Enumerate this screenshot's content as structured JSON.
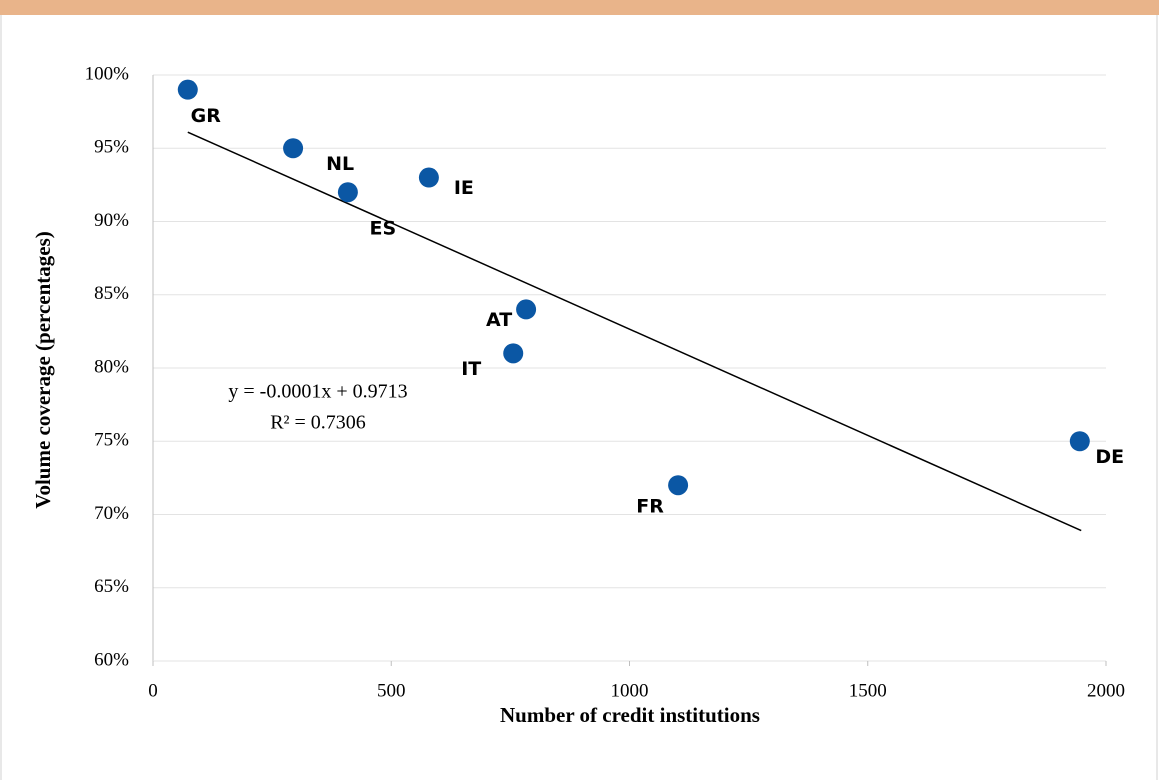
{
  "chart_data": {
    "type": "scatter",
    "x_label": "Number of credit institutions",
    "y_label": "Volume coverage (percentages)",
    "labels": [
      "GR",
      "NL",
      "ES",
      "IE",
      "AT",
      "IT",
      "DE",
      "FR"
    ],
    "x": [
      73,
      294,
      409,
      579,
      783,
      756,
      1945,
      1102
    ],
    "values": [
      99,
      95,
      92,
      93,
      84,
      81,
      75,
      72
    ],
    "color": "#0b57a4",
    "trendline": {
      "x": [
        73,
        1948
      ],
      "y": [
        96.1,
        68.9
      ],
      "color": "#000000"
    },
    "annotations": [
      "y = -0.0001x + 0.9713",
      "R² = 0.7306"
    ],
    "xlim": [
      0,
      2000
    ],
    "xticks": [
      0,
      500,
      1000,
      1500,
      2000
    ],
    "ylim": [
      60,
      100
    ],
    "yticks": [
      {
        "value": 60,
        "label": "60%"
      },
      {
        "value": 65,
        "label": "65%"
      },
      {
        "value": 70,
        "label": "70%"
      },
      {
        "value": 75,
        "label": "75%"
      },
      {
        "value": 80,
        "label": "80%"
      },
      {
        "value": 85,
        "label": "85%"
      },
      {
        "value": 90,
        "label": "90%"
      },
      {
        "value": 95,
        "label": "95%"
      },
      {
        "value": 100,
        "label": "100%"
      }
    ],
    "grid": true
  }
}
